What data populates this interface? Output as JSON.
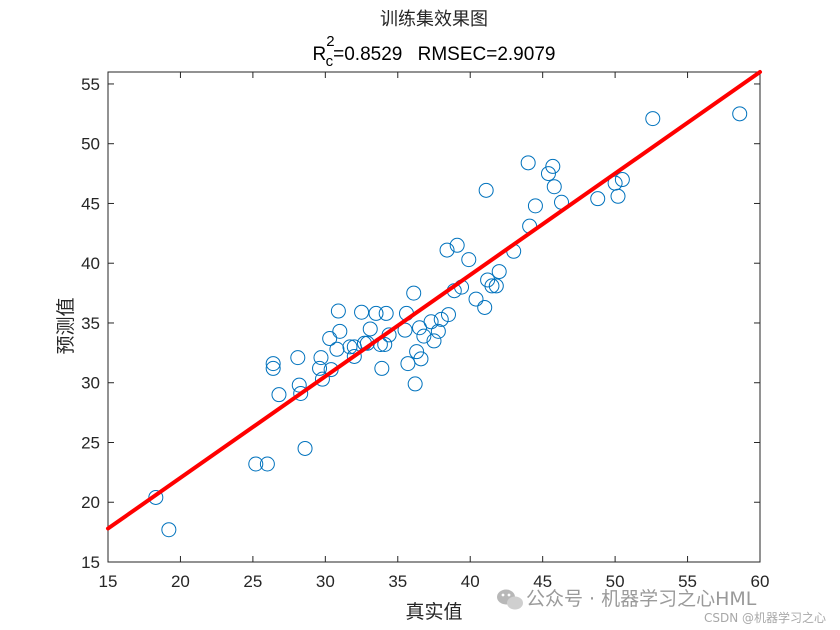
{
  "chart_data": {
    "type": "scatter",
    "title": "训练集效果图",
    "metrics": {
      "r_main": "R",
      "r_sup": "2",
      "r_sub": "c",
      "r_value": "=0.8529",
      "rmse": "RMSEC=2.9079"
    },
    "xlabel": "真实值",
    "ylabel": "预测值",
    "xlim": [
      15,
      60
    ],
    "ylim": [
      15,
      56
    ],
    "xticks": [
      15,
      20,
      25,
      30,
      35,
      40,
      45,
      50,
      55,
      60
    ],
    "yticks": [
      15,
      20,
      25,
      30,
      35,
      40,
      45,
      50,
      55
    ],
    "grid": false,
    "marker_color": "#0072BD",
    "line_color": "#ff0000",
    "fit_line": {
      "x": [
        15,
        60
      ],
      "y": [
        17.8,
        56.0
      ]
    },
    "points": [
      [
        18.3,
        20.4
      ],
      [
        19.2,
        17.7
      ],
      [
        25.2,
        23.2
      ],
      [
        26.0,
        23.2
      ],
      [
        26.4,
        31.6
      ],
      [
        26.4,
        31.2
      ],
      [
        26.8,
        29.0
      ],
      [
        28.1,
        32.1
      ],
      [
        28.2,
        29.8
      ],
      [
        28.3,
        29.1
      ],
      [
        28.6,
        24.5
      ],
      [
        29.6,
        31.2
      ],
      [
        29.7,
        32.1
      ],
      [
        29.8,
        30.3
      ],
      [
        30.3,
        33.7
      ],
      [
        30.4,
        31.1
      ],
      [
        30.8,
        32.8
      ],
      [
        30.9,
        36.0
      ],
      [
        31.0,
        34.3
      ],
      [
        31.7,
        33.0
      ],
      [
        32.0,
        33.0
      ],
      [
        32.0,
        32.2
      ],
      [
        32.5,
        35.9
      ],
      [
        32.7,
        33.3
      ],
      [
        32.9,
        33.3
      ],
      [
        33.1,
        34.5
      ],
      [
        33.5,
        35.8
      ],
      [
        33.8,
        33.2
      ],
      [
        33.9,
        31.2
      ],
      [
        34.1,
        33.2
      ],
      [
        34.2,
        35.8
      ],
      [
        34.4,
        34.0
      ],
      [
        35.5,
        34.4
      ],
      [
        35.6,
        35.8
      ],
      [
        35.7,
        31.6
      ],
      [
        36.1,
        37.5
      ],
      [
        36.2,
        29.9
      ],
      [
        36.3,
        32.6
      ],
      [
        36.5,
        34.6
      ],
      [
        36.6,
        32.0
      ],
      [
        36.8,
        33.9
      ],
      [
        37.3,
        35.1
      ],
      [
        37.5,
        33.5
      ],
      [
        37.8,
        34.3
      ],
      [
        38.0,
        35.3
      ],
      [
        38.4,
        41.1
      ],
      [
        38.5,
        35.7
      ],
      [
        38.9,
        37.7
      ],
      [
        39.1,
        41.5
      ],
      [
        39.4,
        38.0
      ],
      [
        39.9,
        40.3
      ],
      [
        40.4,
        37.0
      ],
      [
        41.0,
        36.3
      ],
      [
        41.1,
        46.1
      ],
      [
        41.2,
        38.6
      ],
      [
        41.5,
        38.1
      ],
      [
        41.8,
        38.1
      ],
      [
        42.0,
        39.3
      ],
      [
        43.0,
        41.0
      ],
      [
        44.0,
        48.4
      ],
      [
        44.1,
        43.1
      ],
      [
        44.5,
        44.8
      ],
      [
        45.4,
        47.5
      ],
      [
        45.7,
        48.1
      ],
      [
        45.8,
        46.4
      ],
      [
        46.3,
        45.1
      ],
      [
        48.8,
        45.4
      ],
      [
        50.0,
        46.7
      ],
      [
        50.2,
        45.6
      ],
      [
        50.5,
        47.0
      ],
      [
        52.6,
        52.1
      ],
      [
        58.6,
        52.5
      ]
    ]
  },
  "watermark": {
    "main": "公众号 · 机器学习之心HML",
    "sub": "CSDN @机器学习之心"
  }
}
